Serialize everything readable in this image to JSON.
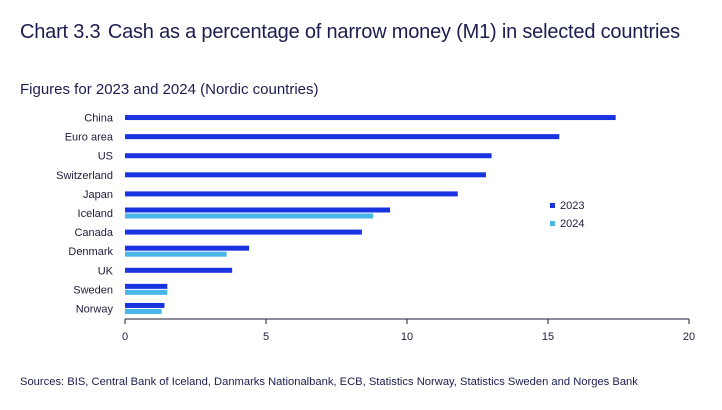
{
  "header": {
    "chart_number": "Chart 3.3",
    "title": "Cash as a percentage of narrow money (M1) in selected countries",
    "subtitle": "Figures for 2023 and 2024 (Nordic countries)"
  },
  "footer": {
    "source": "Sources: BIS, Central Bank of Iceland, Danmarks Nationalbank, ECB, Statistics Norway, Statistics Sweden and Norges Bank"
  },
  "chart_data": {
    "type": "bar",
    "orientation": "horizontal",
    "categories": [
      "China",
      "Euro area",
      "US",
      "Switzerland",
      "Japan",
      "Iceland",
      "Canada",
      "Denmark",
      "UK",
      "Sweden",
      "Norway"
    ],
    "series": [
      {
        "name": "2023",
        "color": "#1a33e0",
        "values": [
          17.4,
          15.4,
          13.0,
          12.8,
          11.8,
          9.4,
          8.4,
          4.4,
          3.8,
          1.5,
          1.4
        ]
      },
      {
        "name": "2024",
        "color": "#48b6e8",
        "values": [
          null,
          null,
          null,
          null,
          null,
          8.8,
          null,
          3.6,
          null,
          1.5,
          1.3
        ]
      }
    ],
    "xlim": [
      0,
      20
    ],
    "xticks": [
      0,
      5,
      10,
      15,
      20
    ],
    "xlabel": "",
    "ylabel": "",
    "legend": {
      "position": "right",
      "entries": [
        "2023",
        "2024"
      ]
    },
    "grid": false
  }
}
